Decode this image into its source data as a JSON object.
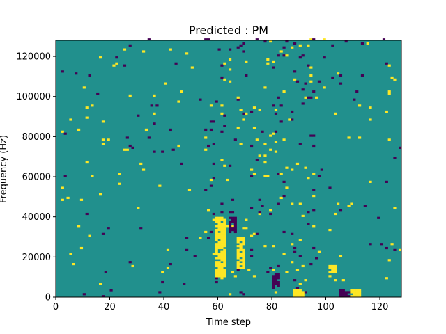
{
  "chart_data": {
    "type": "heatmap",
    "title": "Predicted : PM",
    "xlabel": "Time step",
    "ylabel": "Frequency (Hz)",
    "xlim": [
      0,
      128
    ],
    "ylim": [
      0,
      128000
    ],
    "x_ticks": [
      0,
      20,
      40,
      60,
      80,
      100,
      120
    ],
    "y_ticks": [
      0,
      20000,
      40000,
      60000,
      80000,
      100000,
      120000
    ],
    "n_bins": [
      128,
      128
    ],
    "colors": {
      "background": "#21908d",
      "low": "#440154",
      "high": "#fde725"
    },
    "dense_regions": [
      {
        "value": "high",
        "x_range": [
          59,
          63
        ],
        "y_range": [
          10000,
          40000
        ]
      },
      {
        "value": "high",
        "x_range": [
          67,
          70
        ],
        "y_range": [
          14000,
          30000
        ]
      },
      {
        "value": "low",
        "x_range": [
          64,
          67
        ],
        "y_range": [
          32000,
          40000
        ]
      },
      {
        "value": "low",
        "x_range": [
          80,
          83
        ],
        "y_range": [
          4000,
          12000
        ]
      },
      {
        "value": "high",
        "x_range": [
          88,
          92
        ],
        "y_range": [
          0,
          4000
        ]
      },
      {
        "value": "low",
        "x_range": [
          105,
          109
        ],
        "y_range": [
          0,
          4000
        ]
      },
      {
        "value": "high",
        "x_range": [
          109,
          113
        ],
        "y_range": [
          0,
          4000
        ]
      },
      {
        "value": "high",
        "x_range": [
          101,
          104
        ],
        "y_range": [
          12000,
          16000
        ]
      }
    ]
  }
}
